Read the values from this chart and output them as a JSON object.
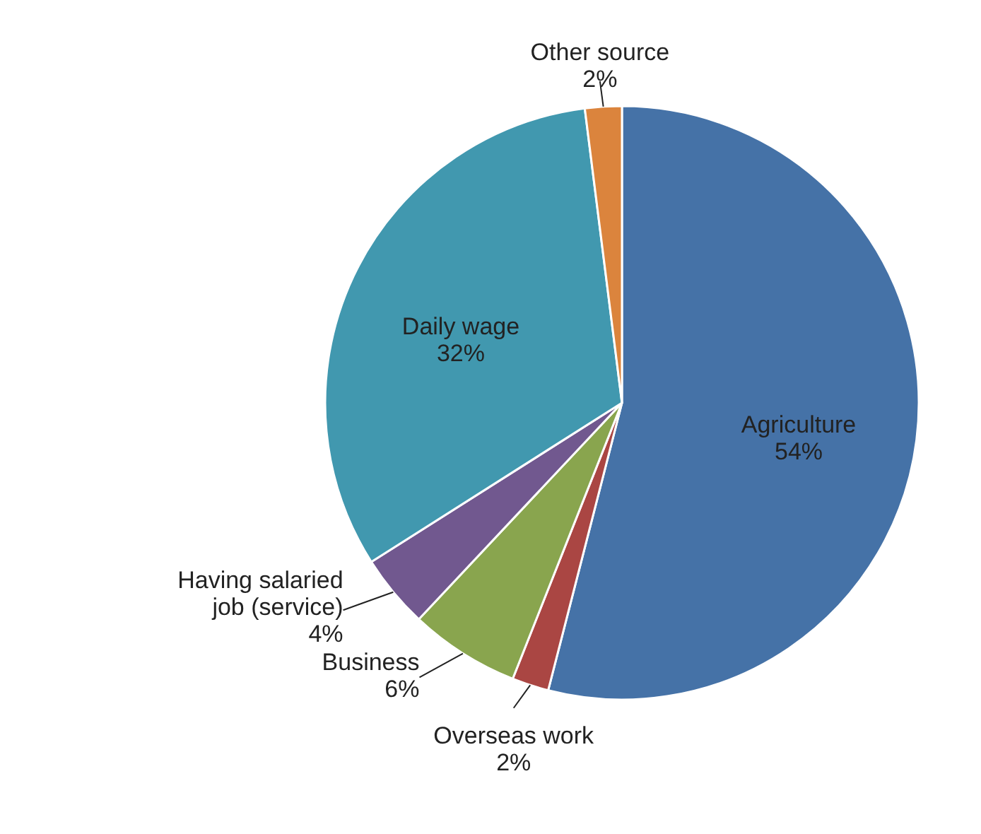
{
  "chart_data": {
    "type": "pie",
    "categories": [
      "Agriculture",
      "Overseas work",
      "Business",
      "Having salaried job (service)",
      "Daily wage",
      "Other source"
    ],
    "values": [
      54,
      2,
      6,
      4,
      32,
      2
    ],
    "value_labels": [
      "54%",
      "2%",
      "6%",
      "4%",
      "32%",
      "2%"
    ],
    "colors": [
      "#4572a7",
      "#aa4643",
      "#89a54e",
      "#71588f",
      "#4198af",
      "#db843d"
    ]
  }
}
